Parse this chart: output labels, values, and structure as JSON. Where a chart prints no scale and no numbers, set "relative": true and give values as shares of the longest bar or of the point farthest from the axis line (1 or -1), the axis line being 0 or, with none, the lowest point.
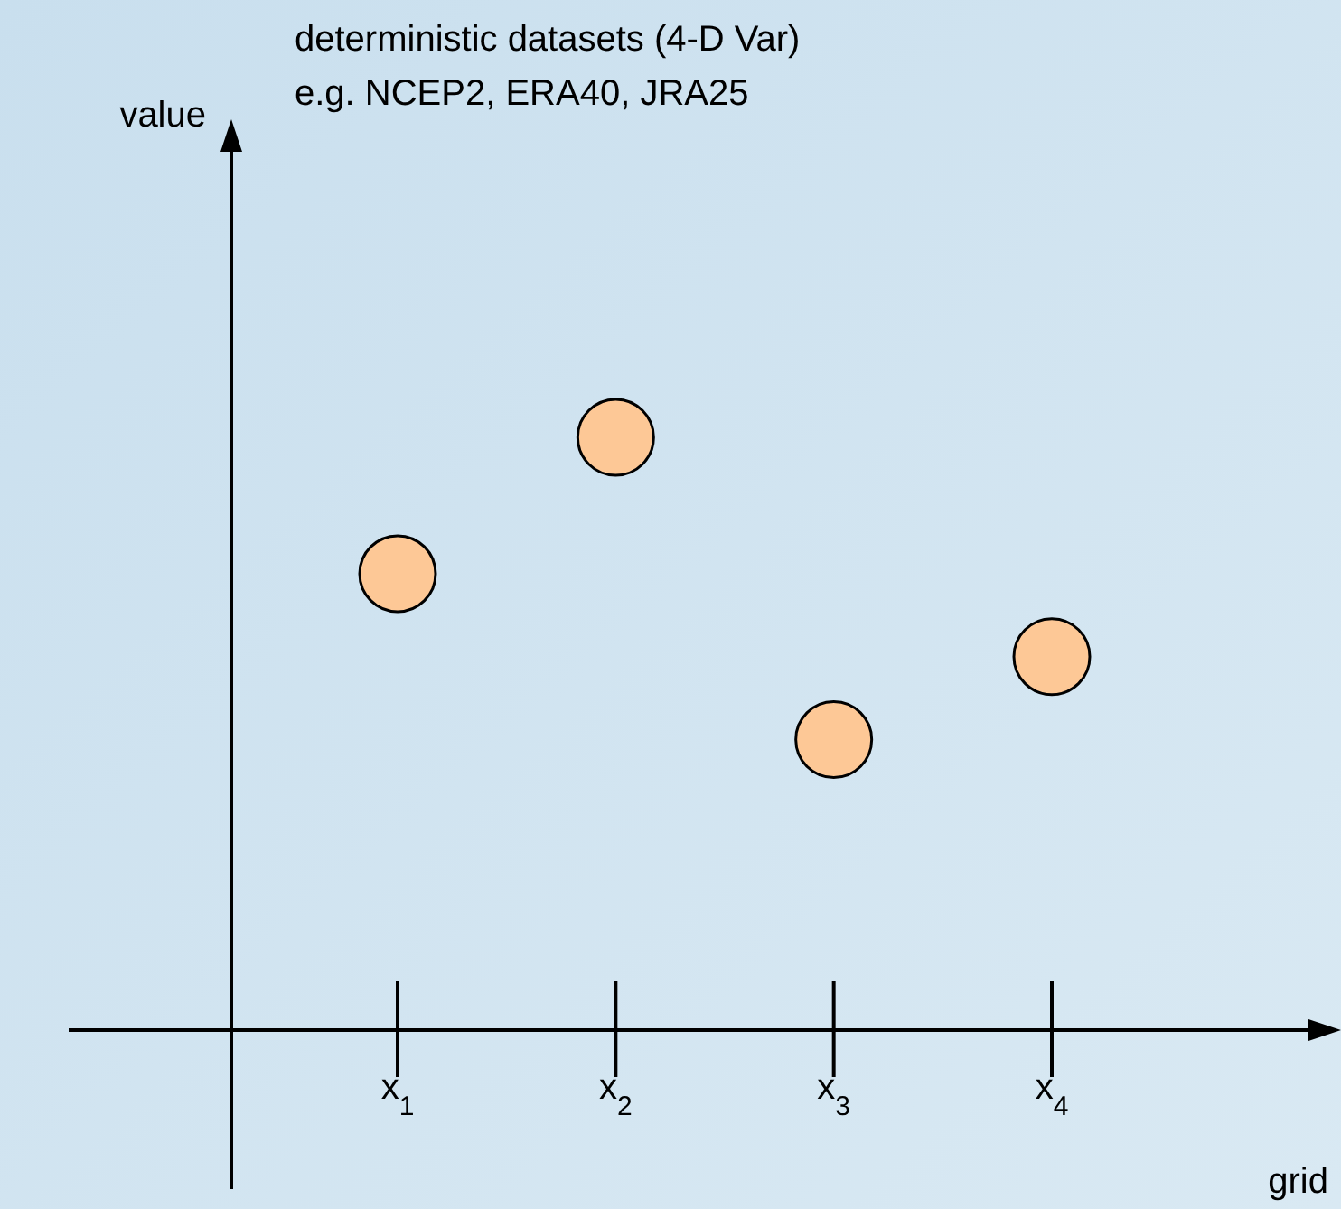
{
  "chart_data": {
    "type": "scatter",
    "title": "deterministic datasets (4-D Var)",
    "subtitle": "e.g. NCEP2, ERA40, JRA25",
    "annotations": [
      "value"
    ],
    "xlabel": "grid",
    "categories": [
      "x$_{1}$",
      "x$_{2}$",
      "x$_{3}$",
      "x$_{4}$"
    ],
    "values": [
      0.77,
      1,
      0.49,
      0.63
    ],
    "color": "#fdc896",
    "relative": true,
    "marker": "circle",
    "grid": false
  }
}
